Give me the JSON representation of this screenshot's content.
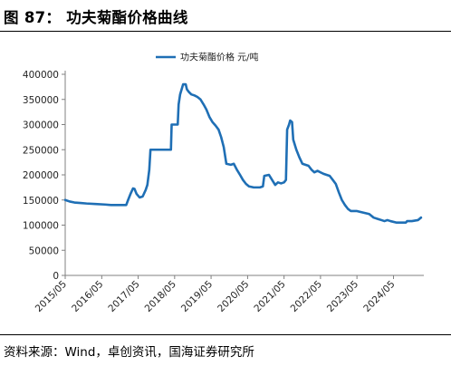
{
  "figure": {
    "title": "图 87： 功夫菊酯价格曲线",
    "source": "资料来源：Wind，卓创资讯，国海证券研究所"
  },
  "chart_data": {
    "type": "line",
    "xlabel": "",
    "ylabel": "",
    "x_ticks": [
      "2015/05",
      "2016/05",
      "2017/05",
      "2018/05",
      "2019/05",
      "2020/05",
      "2021/05",
      "2022/05",
      "2023/05",
      "2024/05"
    ],
    "x_range": [
      "2015-05-01",
      "2025-03-01"
    ],
    "y_ticks": [
      0,
      50000,
      100000,
      150000,
      200000,
      250000,
      300000,
      350000,
      400000
    ],
    "ylim": [
      0,
      400000
    ],
    "legend_position": "top-center",
    "grid": false,
    "series": [
      {
        "name": "功夫菊酯价格  元/吨",
        "color": "#1f6fb5",
        "points": [
          [
            "2015-05-01",
            150000
          ],
          [
            "2015-06-15",
            147000
          ],
          [
            "2015-08-01",
            145000
          ],
          [
            "2015-10-01",
            144000
          ],
          [
            "2015-12-01",
            143000
          ],
          [
            "2016-03-01",
            142000
          ],
          [
            "2016-06-01",
            141000
          ],
          [
            "2016-08-01",
            140000
          ],
          [
            "2016-11-01",
            140000
          ],
          [
            "2017-01-01",
            140000
          ],
          [
            "2017-01-20",
            150000
          ],
          [
            "2017-02-15",
            163000
          ],
          [
            "2017-03-10",
            173000
          ],
          [
            "2017-03-25",
            172000
          ],
          [
            "2017-04-15",
            162000
          ],
          [
            "2017-05-15",
            155000
          ],
          [
            "2017-06-15",
            157000
          ],
          [
            "2017-07-15",
            170000
          ],
          [
            "2017-08-01",
            180000
          ],
          [
            "2017-08-20",
            210000
          ],
          [
            "2017-09-01",
            250000
          ],
          [
            "2017-11-01",
            250000
          ],
          [
            "2018-02-01",
            250000
          ],
          [
            "2018-03-25",
            250000
          ],
          [
            "2018-04-01",
            300000
          ],
          [
            "2018-06-01",
            300000
          ],
          [
            "2018-06-10",
            340000
          ],
          [
            "2018-06-25",
            360000
          ],
          [
            "2018-07-10",
            370000
          ],
          [
            "2018-07-25",
            380000
          ],
          [
            "2018-08-20",
            380000
          ],
          [
            "2018-09-01",
            370000
          ],
          [
            "2018-09-20",
            365000
          ],
          [
            "2018-10-15",
            360000
          ],
          [
            "2018-11-15",
            358000
          ],
          [
            "2018-12-15",
            355000
          ],
          [
            "2019-01-15",
            350000
          ],
          [
            "2019-02-15",
            340000
          ],
          [
            "2019-03-15",
            330000
          ],
          [
            "2019-04-15",
            315000
          ],
          [
            "2019-05-15",
            305000
          ],
          [
            "2019-06-15",
            298000
          ],
          [
            "2019-07-15",
            290000
          ],
          [
            "2019-08-10",
            275000
          ],
          [
            "2019-09-05",
            255000
          ],
          [
            "2019-10-01",
            222000
          ],
          [
            "2019-11-15",
            220000
          ],
          [
            "2019-12-15",
            222000
          ],
          [
            "2020-01-15",
            210000
          ],
          [
            "2020-02-15",
            200000
          ],
          [
            "2020-03-15",
            190000
          ],
          [
            "2020-04-15",
            182000
          ],
          [
            "2020-05-15",
            177000
          ],
          [
            "2020-07-01",
            175000
          ],
          [
            "2020-09-01",
            175000
          ],
          [
            "2020-10-01",
            177000
          ],
          [
            "2020-10-15",
            198000
          ],
          [
            "2020-12-01",
            200000
          ],
          [
            "2021-01-01",
            190000
          ],
          [
            "2021-02-01",
            180000
          ],
          [
            "2021-03-01",
            185000
          ],
          [
            "2021-04-01",
            183000
          ],
          [
            "2021-05-01",
            185000
          ],
          [
            "2021-05-20",
            190000
          ],
          [
            "2021-06-01",
            290000
          ],
          [
            "2021-06-20",
            300000
          ],
          [
            "2021-07-01",
            308000
          ],
          [
            "2021-07-20",
            305000
          ],
          [
            "2021-08-01",
            270000
          ],
          [
            "2021-09-01",
            250000
          ],
          [
            "2021-10-01",
            235000
          ],
          [
            "2021-11-01",
            222000
          ],
          [
            "2021-12-01",
            220000
          ],
          [
            "2022-01-01",
            218000
          ],
          [
            "2022-02-01",
            210000
          ],
          [
            "2022-03-01",
            205000
          ],
          [
            "2022-04-01",
            208000
          ],
          [
            "2022-05-01",
            205000
          ],
          [
            "2022-06-01",
            202000
          ],
          [
            "2022-07-01",
            200000
          ],
          [
            "2022-08-01",
            198000
          ],
          [
            "2022-09-01",
            190000
          ],
          [
            "2022-10-01",
            182000
          ],
          [
            "2022-11-01",
            165000
          ],
          [
            "2022-12-01",
            150000
          ],
          [
            "2023-01-01",
            140000
          ],
          [
            "2023-02-01",
            132000
          ],
          [
            "2023-03-01",
            128000
          ],
          [
            "2023-05-01",
            128000
          ],
          [
            "2023-07-01",
            125000
          ],
          [
            "2023-09-01",
            122000
          ],
          [
            "2023-10-15",
            115000
          ],
          [
            "2023-12-01",
            112000
          ],
          [
            "2024-01-01",
            110000
          ],
          [
            "2024-02-01",
            108000
          ],
          [
            "2024-03-01",
            110000
          ],
          [
            "2024-04-01",
            108000
          ],
          [
            "2024-06-01",
            105000
          ],
          [
            "2024-09-01",
            105000
          ],
          [
            "2024-09-15",
            108000
          ],
          [
            "2024-11-01",
            108000
          ],
          [
            "2025-01-01",
            110000
          ],
          [
            "2025-02-01",
            115000
          ]
        ]
      }
    ]
  }
}
